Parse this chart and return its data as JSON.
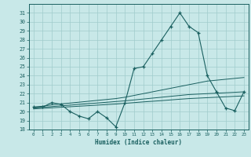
{
  "xlabel": "Humidex (Indice chaleur)",
  "bg_color": "#c8e8e8",
  "line_color": "#1a6060",
  "grid_color": "#b0d8d8",
  "xlim": [
    -0.5,
    23.5
  ],
  "ylim": [
    18,
    32
  ],
  "yticks": [
    18,
    19,
    20,
    21,
    22,
    23,
    24,
    25,
    26,
    27,
    28,
    29,
    30,
    31
  ],
  "xticks": [
    0,
    1,
    2,
    3,
    4,
    5,
    6,
    7,
    8,
    9,
    10,
    11,
    12,
    13,
    14,
    15,
    16,
    17,
    18,
    19,
    20,
    21,
    22,
    23
  ],
  "main_series": [
    20.5,
    20.5,
    21.0,
    20.8,
    20.0,
    19.5,
    19.2,
    20.0,
    19.3,
    18.3,
    21.0,
    24.8,
    25.0,
    26.5,
    28.0,
    29.5,
    31.0,
    29.5,
    28.8,
    24.0,
    22.2,
    20.4,
    20.1,
    22.2
  ],
  "trend_upper": [
    20.5,
    20.6,
    20.75,
    20.85,
    20.95,
    21.05,
    21.15,
    21.25,
    21.35,
    21.45,
    21.6,
    21.8,
    22.0,
    22.2,
    22.4,
    22.6,
    22.8,
    23.0,
    23.2,
    23.4,
    23.5,
    23.6,
    23.7,
    23.8
  ],
  "trend_mid": [
    20.4,
    20.48,
    20.56,
    20.64,
    20.72,
    20.8,
    20.88,
    20.96,
    21.04,
    21.12,
    21.2,
    21.3,
    21.4,
    21.5,
    21.6,
    21.7,
    21.8,
    21.9,
    21.95,
    22.0,
    22.05,
    22.1,
    22.15,
    22.2
  ],
  "trend_lower": [
    20.3,
    20.36,
    20.42,
    20.48,
    20.54,
    20.6,
    20.66,
    20.72,
    20.78,
    20.84,
    20.92,
    21.0,
    21.08,
    21.15,
    21.22,
    21.3,
    21.38,
    21.45,
    21.5,
    21.55,
    21.6,
    21.65,
    21.7,
    21.75
  ]
}
